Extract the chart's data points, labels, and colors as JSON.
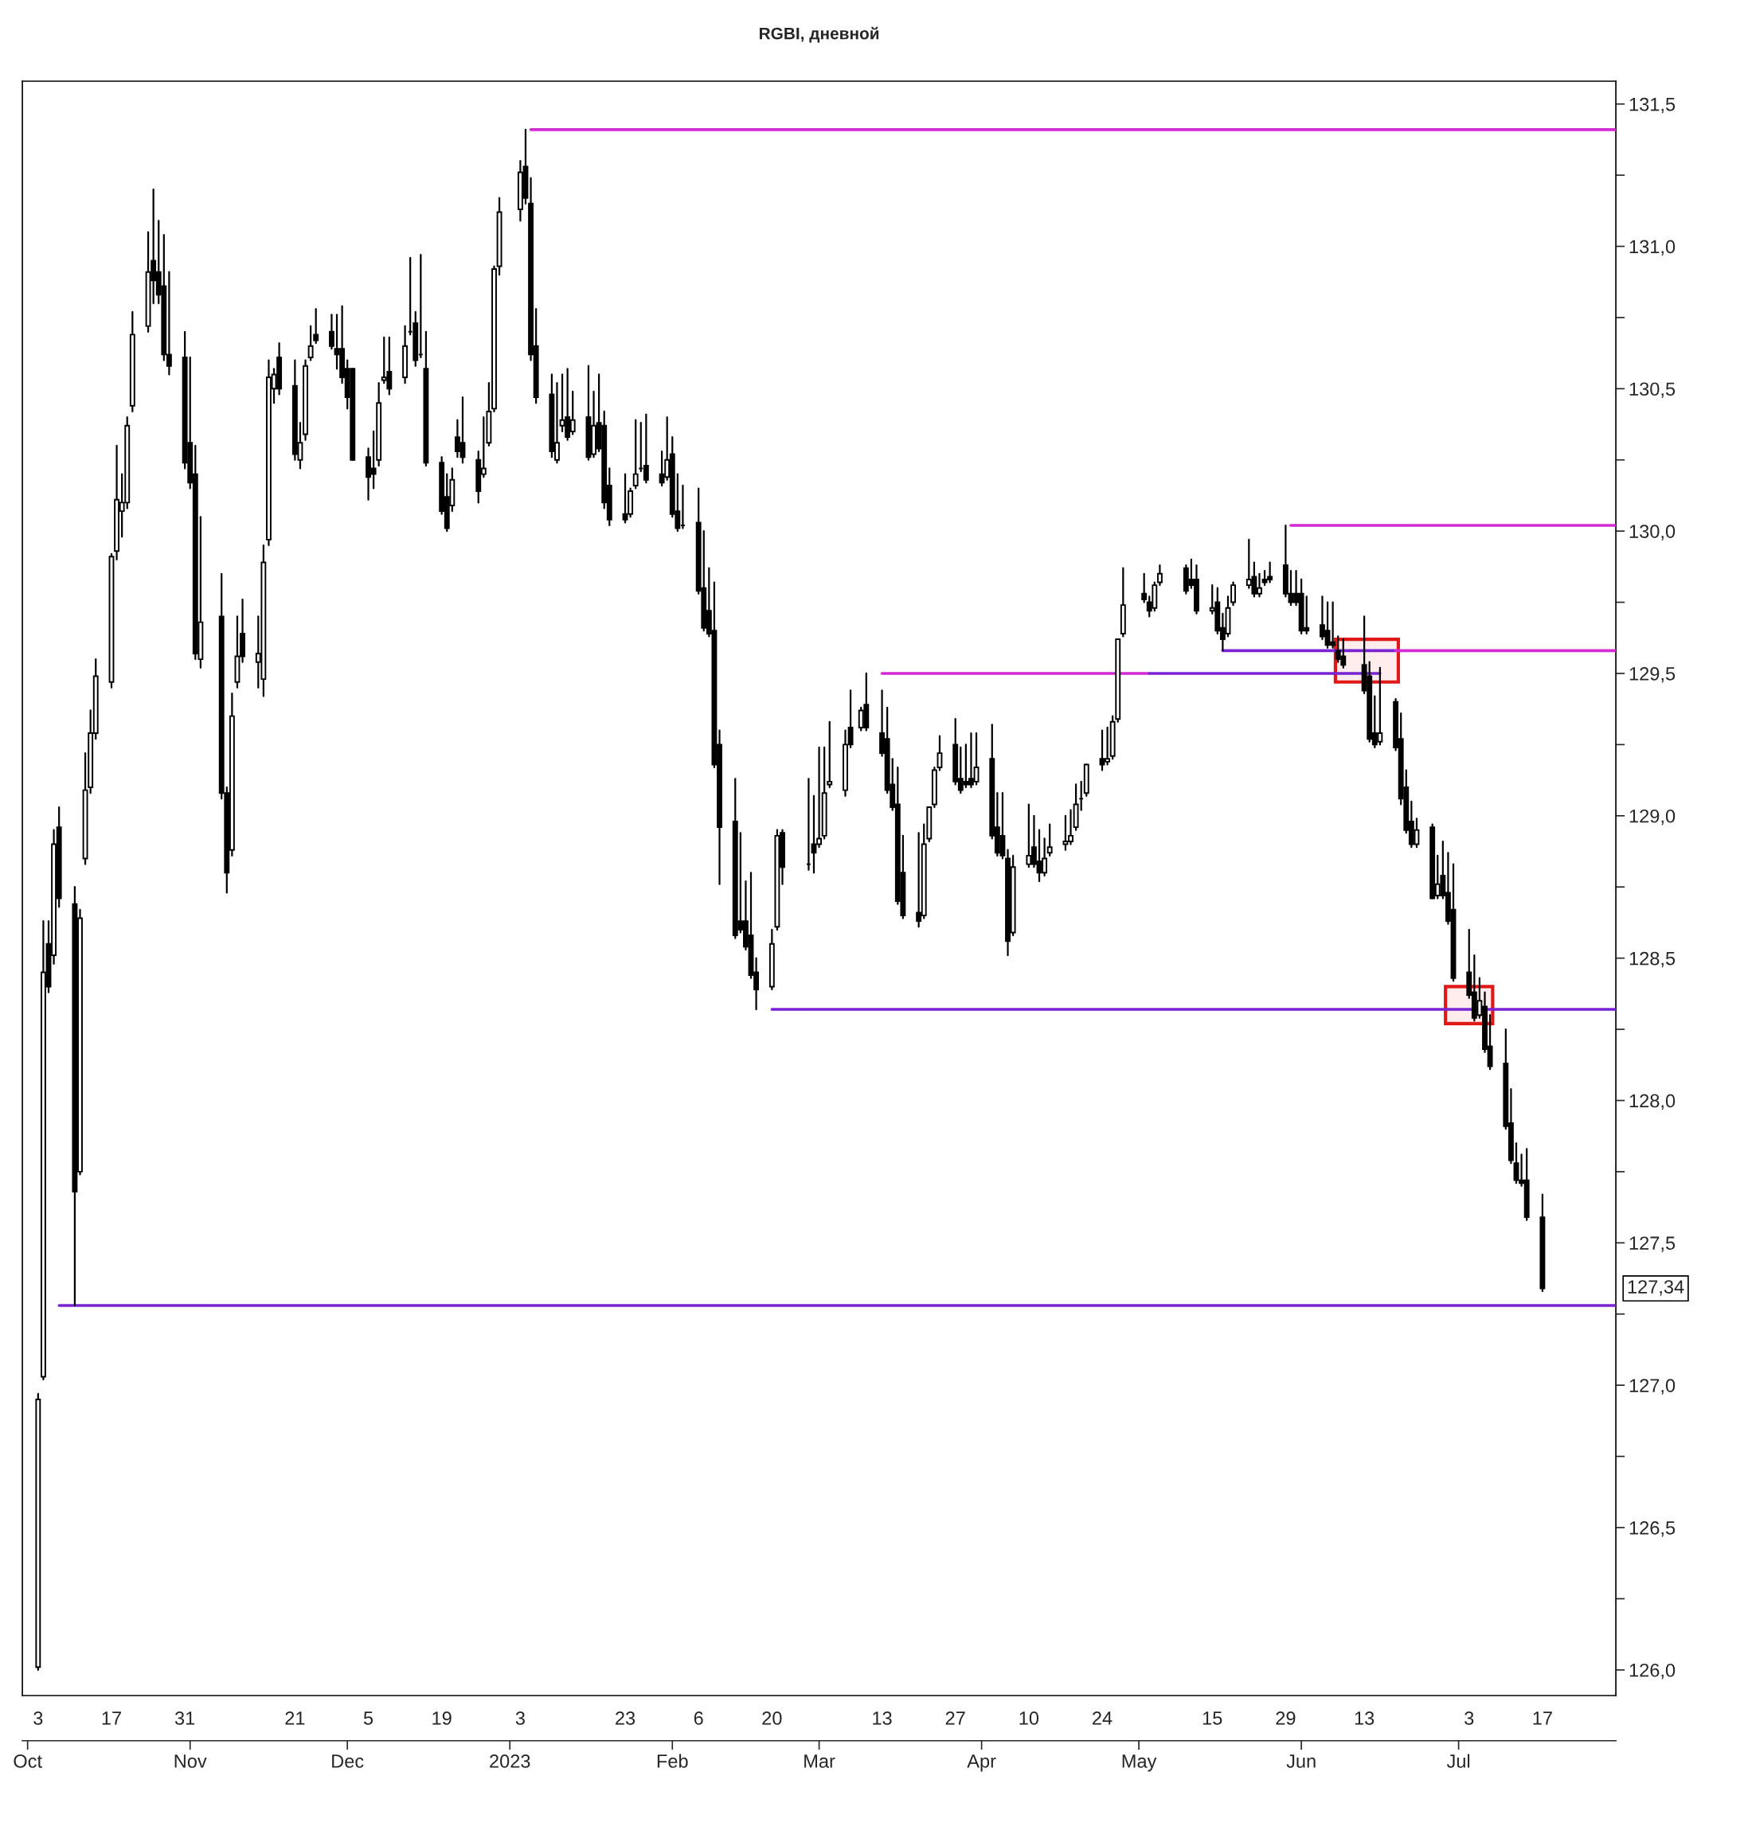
{
  "chart_data": {
    "type": "candlestick",
    "title": "RGBI, дневной",
    "x": [
      "2022-10-03",
      "2022-10-04",
      "2022-10-05",
      "2022-10-06",
      "2022-10-07",
      "2022-10-10",
      "2022-10-11",
      "2022-10-12",
      "2022-10-13",
      "2022-10-14",
      "2022-10-17",
      "2022-10-18",
      "2022-10-19",
      "2022-10-20",
      "2022-10-21",
      "2022-10-24",
      "2022-10-25",
      "2022-10-26",
      "2022-10-27",
      "2022-10-28",
      "2022-10-31",
      "2022-11-01",
      "2022-11-02",
      "2022-11-03",
      "2022-11-07",
      "2022-11-08",
      "2022-11-09",
      "2022-11-10",
      "2022-11-11",
      "2022-11-14",
      "2022-11-15",
      "2022-11-16",
      "2022-11-17",
      "2022-11-18",
      "2022-11-21",
      "2022-11-22",
      "2022-11-23",
      "2022-11-24",
      "2022-11-25",
      "2022-11-28",
      "2022-11-29",
      "2022-11-30",
      "2022-12-01",
      "2022-12-02",
      "2022-12-05",
      "2022-12-06",
      "2022-12-07",
      "2022-12-08",
      "2022-12-09",
      "2022-12-12",
      "2022-12-13",
      "2022-12-14",
      "2022-12-15",
      "2022-12-16",
      "2022-12-19",
      "2022-12-20",
      "2022-12-21",
      "2022-12-22",
      "2022-12-23",
      "2022-12-26",
      "2022-12-27",
      "2022-12-28",
      "2022-12-29",
      "2022-12-30",
      "2023-01-03",
      "2023-01-04",
      "2023-01-05",
      "2023-01-06",
      "2023-01-09",
      "2023-01-10",
      "2023-01-11",
      "2023-01-12",
      "2023-01-13",
      "2023-01-16",
      "2023-01-17",
      "2023-01-18",
      "2023-01-19",
      "2023-01-20",
      "2023-01-23",
      "2023-01-24",
      "2023-01-25",
      "2023-01-26",
      "2023-01-27",
      "2023-01-30",
      "2023-01-31",
      "2023-02-01",
      "2023-02-02",
      "2023-02-03",
      "2023-02-06",
      "2023-02-07",
      "2023-02-08",
      "2023-02-09",
      "2023-02-10",
      "2023-02-13",
      "2023-02-14",
      "2023-02-15",
      "2023-02-16",
      "2023-02-17",
      "2023-02-20",
      "2023-02-21",
      "2023-02-22",
      "2023-02-27",
      "2023-02-28",
      "2023-03-01",
      "2023-03-02",
      "2023-03-03",
      "2023-03-06",
      "2023-03-07",
      "2023-03-09",
      "2023-03-10",
      "2023-03-13",
      "2023-03-14",
      "2023-03-15",
      "2023-03-16",
      "2023-03-17",
      "2023-03-20",
      "2023-03-21",
      "2023-03-22",
      "2023-03-23",
      "2023-03-24",
      "2023-03-27",
      "2023-03-28",
      "2023-03-29",
      "2023-03-30",
      "2023-03-31",
      "2023-04-03",
      "2023-04-04",
      "2023-04-05",
      "2023-04-06",
      "2023-04-07",
      "2023-04-10",
      "2023-04-11",
      "2023-04-12",
      "2023-04-13",
      "2023-04-14",
      "2023-04-17",
      "2023-04-18",
      "2023-04-19",
      "2023-04-20",
      "2023-04-21",
      "2023-04-24",
      "2023-04-25",
      "2023-04-26",
      "2023-04-27",
      "2023-04-28",
      "2023-05-02",
      "2023-05-03",
      "2023-05-04",
      "2023-05-05",
      "2023-05-10",
      "2023-05-11",
      "2023-05-12",
      "2023-05-15",
      "2023-05-16",
      "2023-05-17",
      "2023-05-18",
      "2023-05-19",
      "2023-05-22",
      "2023-05-23",
      "2023-05-24",
      "2023-05-25",
      "2023-05-26",
      "2023-05-29",
      "2023-05-30",
      "2023-05-31",
      "2023-06-01",
      "2023-06-02",
      "2023-06-05",
      "2023-06-06",
      "2023-06-07",
      "2023-06-08",
      "2023-06-09",
      "2023-06-13",
      "2023-06-14",
      "2023-06-15",
      "2023-06-16",
      "2023-06-19",
      "2023-06-20",
      "2023-06-21",
      "2023-06-22",
      "2023-06-23",
      "2023-06-26",
      "2023-06-27",
      "2023-06-28",
      "2023-06-29",
      "2023-06-30",
      "2023-07-03",
      "2023-07-04",
      "2023-07-05",
      "2023-07-06",
      "2023-07-07",
      "2023-07-10",
      "2023-07-11",
      "2023-07-12",
      "2023-07-13",
      "2023-07-14",
      "2023-07-17"
    ],
    "ohlc": [
      [
        126.01,
        126.97,
        126.0,
        126.95
      ],
      [
        127.03,
        128.63,
        127.02,
        128.45
      ],
      [
        128.55,
        128.63,
        128.38,
        128.4
      ],
      [
        128.51,
        128.95,
        128.48,
        128.9
      ],
      [
        128.96,
        129.03,
        128.68,
        128.71
      ],
      [
        128.69,
        128.75,
        127.28,
        127.68
      ],
      [
        127.75,
        128.67,
        127.74,
        128.64
      ],
      [
        128.85,
        129.22,
        128.83,
        129.09
      ],
      [
        129.1,
        129.37,
        129.08,
        129.29
      ],
      [
        129.29,
        129.55,
        129.27,
        129.49
      ],
      [
        129.47,
        129.92,
        129.45,
        129.91
      ],
      [
        129.93,
        130.3,
        129.9,
        130.11
      ],
      [
        130.07,
        130.2,
        129.98,
        130.1
      ],
      [
        130.1,
        130.4,
        130.08,
        130.37
      ],
      [
        130.44,
        130.77,
        130.42,
        130.69
      ],
      [
        130.72,
        131.05,
        130.7,
        130.91
      ],
      [
        130.95,
        131.2,
        130.8,
        130.88
      ],
      [
        130.91,
        131.09,
        130.8,
        130.83
      ],
      [
        130.86,
        131.04,
        130.6,
        130.62
      ],
      [
        130.62,
        130.91,
        130.55,
        130.58
      ],
      [
        130.61,
        130.7,
        130.22,
        130.24
      ],
      [
        130.31,
        130.61,
        130.15,
        130.17
      ],
      [
        130.2,
        130.3,
        129.55,
        129.57
      ],
      [
        129.55,
        130.05,
        129.52,
        129.68
      ],
      [
        129.7,
        129.85,
        129.06,
        129.08
      ],
      [
        129.08,
        129.1,
        128.73,
        128.8
      ],
      [
        128.88,
        129.43,
        128.86,
        129.35
      ],
      [
        129.47,
        129.7,
        129.45,
        129.56
      ],
      [
        129.64,
        129.76,
        129.54,
        129.56
      ],
      [
        129.54,
        129.7,
        129.45,
        129.57
      ],
      [
        129.48,
        129.95,
        129.42,
        129.89
      ],
      [
        129.97,
        130.6,
        129.95,
        130.54
      ],
      [
        130.5,
        130.57,
        130.45,
        130.55
      ],
      [
        130.61,
        130.66,
        130.48,
        130.5
      ],
      [
        130.51,
        130.6,
        130.25,
        130.27
      ],
      [
        130.25,
        130.38,
        130.22,
        130.31
      ],
      [
        130.34,
        130.6,
        130.32,
        130.58
      ],
      [
        130.61,
        130.72,
        130.6,
        130.65
      ],
      [
        130.69,
        130.78,
        130.66,
        130.67
      ],
      [
        130.7,
        130.76,
        130.64,
        130.65
      ],
      [
        130.64,
        130.76,
        130.57,
        130.62
      ],
      [
        130.64,
        130.79,
        130.52,
        130.54
      ],
      [
        130.57,
        130.6,
        130.43,
        130.47
      ],
      [
        130.57,
        130.57,
        130.25,
        130.25
      ],
      [
        130.26,
        130.29,
        130.11,
        130.19
      ],
      [
        130.22,
        130.35,
        130.15,
        130.2
      ],
      [
        130.25,
        130.52,
        130.23,
        130.45
      ],
      [
        130.53,
        130.68,
        130.52,
        130.54
      ],
      [
        130.56,
        130.68,
        130.48,
        130.5
      ],
      [
        130.54,
        130.72,
        130.52,
        130.65
      ],
      [
        130.7,
        130.96,
        130.69,
        130.7
      ],
      [
        130.73,
        130.77,
        130.58,
        130.6
      ],
      [
        130.62,
        130.97,
        130.61,
        130.62
      ],
      [
        130.57,
        130.7,
        130.23,
        130.24
      ],
      [
        130.24,
        130.26,
        130.06,
        130.07
      ],
      [
        130.12,
        130.2,
        130.0,
        130.01
      ],
      [
        130.09,
        130.22,
        130.07,
        130.18
      ],
      [
        130.33,
        130.39,
        130.26,
        130.28
      ],
      [
        130.31,
        130.47,
        130.24,
        130.26
      ],
      [
        130.25,
        130.28,
        130.1,
        130.14
      ],
      [
        130.2,
        130.4,
        130.19,
        130.22
      ],
      [
        130.31,
        130.52,
        130.3,
        130.42
      ],
      [
        130.43,
        130.93,
        130.42,
        130.92
      ],
      [
        130.93,
        131.17,
        130.9,
        131.12
      ],
      [
        131.13,
        131.3,
        131.09,
        131.26
      ],
      [
        131.28,
        131.41,
        131.15,
        131.17
      ],
      [
        131.15,
        131.24,
        130.6,
        130.62
      ],
      [
        130.65,
        130.78,
        130.45,
        130.47
      ],
      [
        130.48,
        130.55,
        130.26,
        130.28
      ],
      [
        130.25,
        130.52,
        130.24,
        130.31
      ],
      [
        130.37,
        130.55,
        130.35,
        130.39
      ],
      [
        130.4,
        130.57,
        130.32,
        130.33
      ],
      [
        130.35,
        130.49,
        130.34,
        130.39
      ],
      [
        130.4,
        130.58,
        130.25,
        130.26
      ],
      [
        130.27,
        130.49,
        130.26,
        130.37
      ],
      [
        130.38,
        130.55,
        130.28,
        130.29
      ],
      [
        130.37,
        130.42,
        130.08,
        130.1
      ],
      [
        130.16,
        130.22,
        130.02,
        130.04
      ],
      [
        130.06,
        130.2,
        130.03,
        130.04
      ],
      [
        130.06,
        130.15,
        130.05,
        130.14
      ],
      [
        130.16,
        130.39,
        130.15,
        130.2
      ],
      [
        130.22,
        130.38,
        130.21,
        130.22
      ],
      [
        130.23,
        130.41,
        130.17,
        130.18
      ],
      [
        130.2,
        130.28,
        130.16,
        130.17
      ],
      [
        130.19,
        130.4,
        130.18,
        130.25
      ],
      [
        130.27,
        130.33,
        130.05,
        130.06
      ],
      [
        130.07,
        130.2,
        130.0,
        130.01
      ],
      [
        130.02,
        130.16,
        130.01,
        130.02
      ],
      [
        130.03,
        130.15,
        129.78,
        129.79
      ],
      [
        129.8,
        130.0,
        129.65,
        129.66
      ],
      [
        129.72,
        129.87,
        129.63,
        129.64
      ],
      [
        129.65,
        129.82,
        129.17,
        129.18
      ],
      [
        129.25,
        129.3,
        128.76,
        128.96
      ],
      [
        128.98,
        129.13,
        128.57,
        128.58
      ],
      [
        128.63,
        128.94,
        128.59,
        128.6
      ],
      [
        128.63,
        128.77,
        128.53,
        128.54
      ],
      [
        128.58,
        128.8,
        128.43,
        128.44
      ],
      [
        128.45,
        128.5,
        128.32,
        128.39
      ],
      [
        128.4,
        128.6,
        128.39,
        128.55
      ],
      [
        128.61,
        128.95,
        128.6,
        128.93
      ],
      [
        128.94,
        128.95,
        128.76,
        128.82
      ],
      [
        128.83,
        129.13,
        128.81,
        128.83
      ],
      [
        128.9,
        129.07,
        128.8,
        128.87
      ],
      [
        128.9,
        129.24,
        128.89,
        128.92
      ],
      [
        128.93,
        129.24,
        128.92,
        129.08
      ],
      [
        129.11,
        129.33,
        129.1,
        129.12
      ],
      [
        129.09,
        129.3,
        129.07,
        129.25
      ],
      [
        129.31,
        129.44,
        129.24,
        129.25
      ],
      [
        129.31,
        129.38,
        129.3,
        129.37
      ],
      [
        129.39,
        129.5,
        129.3,
        129.31
      ],
      [
        129.29,
        129.44,
        129.21,
        129.22
      ],
      [
        129.27,
        129.38,
        129.08,
        129.09
      ],
      [
        129.11,
        129.2,
        129.02,
        129.03
      ],
      [
        129.04,
        129.17,
        128.69,
        128.7
      ],
      [
        128.8,
        128.93,
        128.64,
        128.65
      ],
      [
        128.66,
        128.94,
        128.61,
        128.63
      ],
      [
        128.65,
        128.97,
        128.64,
        128.9
      ],
      [
        128.92,
        129.03,
        128.91,
        129.03
      ],
      [
        129.04,
        129.17,
        129.03,
        129.16
      ],
      [
        129.17,
        129.28,
        129.16,
        129.22
      ],
      [
        129.25,
        129.34,
        129.11,
        129.12
      ],
      [
        129.13,
        129.24,
        129.08,
        129.09
      ],
      [
        129.12,
        129.25,
        129.1,
        129.11
      ],
      [
        129.13,
        129.29,
        129.1,
        129.11
      ],
      [
        129.12,
        129.29,
        129.11,
        129.17
      ],
      [
        129.2,
        129.32,
        128.92,
        128.93
      ],
      [
        128.96,
        129.08,
        128.86,
        128.87
      ],
      [
        128.93,
        129.08,
        128.85,
        128.86
      ],
      [
        128.85,
        128.88,
        128.51,
        128.56
      ],
      [
        128.59,
        128.86,
        128.58,
        128.82
      ],
      [
        128.83,
        129.04,
        128.82,
        128.86
      ],
      [
        128.89,
        129.0,
        128.82,
        128.83
      ],
      [
        128.84,
        128.95,
        128.77,
        128.8
      ],
      [
        128.8,
        128.92,
        128.79,
        128.85
      ],
      [
        128.87,
        128.97,
        128.86,
        128.89
      ],
      [
        128.9,
        129.0,
        128.88,
        128.91
      ],
      [
        128.91,
        129.02,
        128.9,
        128.93
      ],
      [
        128.96,
        129.11,
        128.95,
        129.04
      ],
      [
        129.06,
        129.12,
        129.02,
        129.06
      ],
      [
        129.08,
        129.18,
        129.07,
        129.18
      ],
      [
        129.2,
        129.3,
        129.16,
        129.18
      ],
      [
        129.19,
        129.31,
        129.18,
        129.2
      ],
      [
        129.21,
        129.35,
        129.2,
        129.33
      ],
      [
        129.34,
        129.62,
        129.33,
        129.62
      ],
      [
        129.64,
        129.87,
        129.63,
        129.74
      ],
      [
        129.78,
        129.85,
        129.75,
        129.76
      ],
      [
        129.75,
        129.77,
        129.7,
        129.72
      ],
      [
        129.73,
        129.82,
        129.72,
        129.81
      ],
      [
        129.82,
        129.88,
        129.81,
        129.85
      ],
      [
        129.87,
        129.88,
        129.78,
        129.79
      ],
      [
        129.83,
        129.9,
        129.8,
        129.81
      ],
      [
        129.83,
        129.88,
        129.71,
        129.72
      ],
      [
        129.72,
        129.81,
        129.71,
        129.73
      ],
      [
        129.75,
        129.8,
        129.64,
        129.65
      ],
      [
        129.66,
        129.71,
        129.58,
        129.62
      ],
      [
        129.64,
        129.77,
        129.63,
        129.73
      ],
      [
        129.75,
        129.82,
        129.74,
        129.81
      ],
      [
        129.81,
        129.97,
        129.8,
        129.83
      ],
      [
        129.84,
        129.89,
        129.77,
        129.78
      ],
      [
        129.78,
        129.85,
        129.77,
        129.8
      ],
      [
        129.83,
        129.86,
        129.81,
        129.82
      ],
      [
        129.84,
        129.89,
        129.82,
        129.83
      ],
      [
        129.88,
        130.02,
        129.77,
        129.78
      ],
      [
        129.78,
        129.86,
        129.74,
        129.75
      ],
      [
        129.78,
        129.86,
        129.74,
        129.75
      ],
      [
        129.78,
        129.83,
        129.64,
        129.65
      ],
      [
        129.66,
        129.77,
        129.64,
        129.65
      ],
      [
        129.67,
        129.77,
        129.62,
        129.63
      ],
      [
        129.65,
        129.75,
        129.59,
        129.6
      ],
      [
        129.61,
        129.75,
        129.59,
        129.6
      ],
      [
        129.58,
        129.63,
        129.54,
        129.55
      ],
      [
        129.56,
        129.62,
        129.52,
        129.53
      ],
      [
        129.53,
        129.7,
        129.43,
        129.44
      ],
      [
        129.49,
        129.54,
        129.26,
        129.27
      ],
      [
        129.29,
        129.42,
        129.24,
        129.25
      ],
      [
        129.26,
        129.52,
        129.25,
        129.29
      ],
      [
        129.4,
        129.41,
        129.23,
        129.24
      ],
      [
        129.27,
        129.36,
        129.04,
        129.06
      ],
      [
        129.1,
        129.16,
        128.94,
        128.95
      ],
      [
        128.98,
        129.05,
        128.89,
        128.9
      ],
      [
        128.9,
        128.99,
        128.89,
        128.95
      ],
      [
        128.96,
        128.97,
        128.71,
        128.71
      ],
      [
        128.72,
        128.86,
        128.71,
        128.76
      ],
      [
        128.79,
        128.91,
        128.71,
        128.72
      ],
      [
        128.73,
        128.87,
        128.62,
        128.63
      ],
      [
        128.67,
        128.83,
        128.42,
        128.43
      ],
      [
        128.45,
        128.6,
        128.36,
        128.37
      ],
      [
        128.38,
        128.51,
        128.28,
        128.29
      ],
      [
        128.3,
        128.43,
        128.29,
        128.35
      ],
      [
        128.33,
        128.38,
        128.17,
        128.18
      ],
      [
        128.19,
        128.3,
        128.11,
        128.12
      ],
      [
        128.13,
        128.25,
        127.9,
        127.91
      ],
      [
        127.92,
        128.04,
        127.78,
        127.79
      ],
      [
        127.78,
        127.85,
        127.71,
        127.72
      ],
      [
        127.72,
        127.81,
        127.7,
        127.71
      ],
      [
        127.72,
        127.83,
        127.58,
        127.59
      ],
      [
        127.59,
        127.67,
        127.33,
        127.34
      ]
    ],
    "series": [
      {
        "type": "line",
        "color": "#d42ad4",
        "x": [
          "2023-01-05",
          "2023-07-31"
        ],
        "values": [
          131.41,
          131.41
        ]
      },
      {
        "type": "line",
        "color": "#d42ad4",
        "x": [
          "2023-05-30",
          "2023-07-31"
        ],
        "values": [
          130.02,
          130.02
        ]
      },
      {
        "type": "line",
        "color": "#7a22d4",
        "x": [
          "2023-05-17",
          "2023-06-19"
        ],
        "values": [
          129.58,
          129.58
        ]
      },
      {
        "type": "line",
        "color": "#d42ad4",
        "x": [
          "2023-06-19",
          "2023-07-31"
        ],
        "values": [
          129.58,
          129.58
        ]
      },
      {
        "type": "line",
        "color": "#d42ad4",
        "x": [
          "2023-03-13",
          "2023-05-03"
        ],
        "values": [
          129.5,
          129.5
        ]
      },
      {
        "type": "line",
        "color": "#7a22d4",
        "x": [
          "2023-05-03",
          "2023-06-16"
        ],
        "values": [
          129.5,
          129.5
        ]
      },
      {
        "type": "line",
        "color": "#7a22d4",
        "x": [
          "2023-02-20",
          "2023-07-31"
        ],
        "values": [
          128.32,
          128.32
        ]
      },
      {
        "type": "line",
        "color": "#7a22d4",
        "x": [
          "2022-10-07",
          "2023-07-31"
        ],
        "values": [
          127.28,
          127.28
        ]
      }
    ],
    "annotations": [
      "127,34"
    ],
    "xlim": [
      "2022-09-30",
      "2023-07-31"
    ],
    "xticks": [
      {
        "value": "2022-10-03",
        "label": "3"
      },
      {
        "value": "2022-10-17",
        "label": "17"
      },
      {
        "value": "2022-10-31",
        "label": "31"
      },
      {
        "value": "2022-11-21",
        "label": "21"
      },
      {
        "value": "2022-12-05",
        "label": "5"
      },
      {
        "value": "2022-12-19",
        "label": "19"
      },
      {
        "value": "2023-01-03",
        "label": "3"
      },
      {
        "value": "2023-01-23",
        "label": "23"
      },
      {
        "value": "2023-02-06",
        "label": "6"
      },
      {
        "value": "2023-02-20",
        "label": "20"
      },
      {
        "value": "2023-03-13",
        "label": "13"
      },
      {
        "value": "2023-03-27",
        "label": "27"
      },
      {
        "value": "2023-04-10",
        "label": "10"
      },
      {
        "value": "2023-04-24",
        "label": "24"
      },
      {
        "value": "2023-05-15",
        "label": "15"
      },
      {
        "value": "2023-05-29",
        "label": "29"
      },
      {
        "value": "2023-06-13",
        "label": "13"
      },
      {
        "value": "2023-07-03",
        "label": "3"
      },
      {
        "value": "2023-07-17",
        "label": "17"
      }
    ],
    "x2lim": [
      "2022-09-30",
      "2023-07-31"
    ],
    "x2ticks": [
      {
        "value": "2022-10-01",
        "label": "Oct"
      },
      {
        "value": "2022-11-01",
        "label": "Nov"
      },
      {
        "value": "2022-12-01",
        "label": "Dec"
      },
      {
        "value": "2023-01-01",
        "label": "2023"
      },
      {
        "value": "2023-02-01",
        "label": "Feb"
      },
      {
        "value": "2023-03-01",
        "label": "Mar"
      },
      {
        "value": "2023-04-01",
        "label": "Apr"
      },
      {
        "value": "2023-05-01",
        "label": "May"
      },
      {
        "value": "2023-06-01",
        "label": "Jun"
      },
      {
        "value": "2023-07-01",
        "label": "Jul"
      }
    ],
    "ylim": [
      125.91,
      131.58
    ],
    "yticks": [
      {
        "value": 126.0,
        "label": "126,0"
      },
      {
        "value": 126.25,
        "label": null
      },
      {
        "value": 126.5,
        "label": "126,5"
      },
      {
        "value": 126.75,
        "label": null
      },
      {
        "value": 127.0,
        "label": "127,0"
      },
      {
        "value": 127.25,
        "label": null
      },
      {
        "value": 127.5,
        "label": "127,5"
      },
      {
        "value": 127.75,
        "label": null
      },
      {
        "value": 128.0,
        "label": "128,0"
      },
      {
        "value": 128.25,
        "label": null
      },
      {
        "value": 128.5,
        "label": "128,5"
      },
      {
        "value": 128.75,
        "label": null
      },
      {
        "value": 129.0,
        "label": "129,0"
      },
      {
        "value": 129.25,
        "label": null
      },
      {
        "value": 129.5,
        "label": "129,5"
      },
      {
        "value": 129.75,
        "label": null
      },
      {
        "value": 130.0,
        "label": "130,0"
      },
      {
        "value": 130.25,
        "label": null
      },
      {
        "value": 130.5,
        "label": "130,5"
      },
      {
        "value": 130.75,
        "label": null
      },
      {
        "value": 131.0,
        "label": "131,0"
      },
      {
        "value": 131.25,
        "label": null
      },
      {
        "value": 131.5,
        "label": "131,5"
      }
    ],
    "grid": false,
    "legend": false
  }
}
